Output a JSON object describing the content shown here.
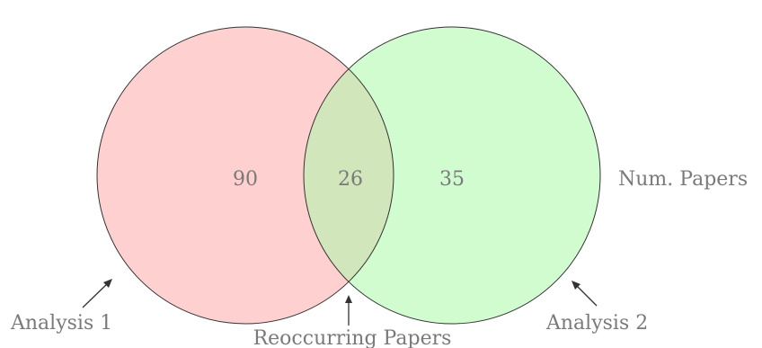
{
  "diagram": {
    "type": "venn",
    "sets": [
      {
        "label": "Analysis 1",
        "only_count": "90",
        "fill": "#ffd0d0"
      },
      {
        "label": "Analysis 2",
        "only_count": "35",
        "fill": "#d0fcd0"
      }
    ],
    "intersection": {
      "label": "Reoccurring Papers",
      "count": "26",
      "fill": "#d2e6bc"
    },
    "legend_label": "Num. Papers",
    "outline_color": "#333333",
    "text_color": "#7a7a7a"
  }
}
